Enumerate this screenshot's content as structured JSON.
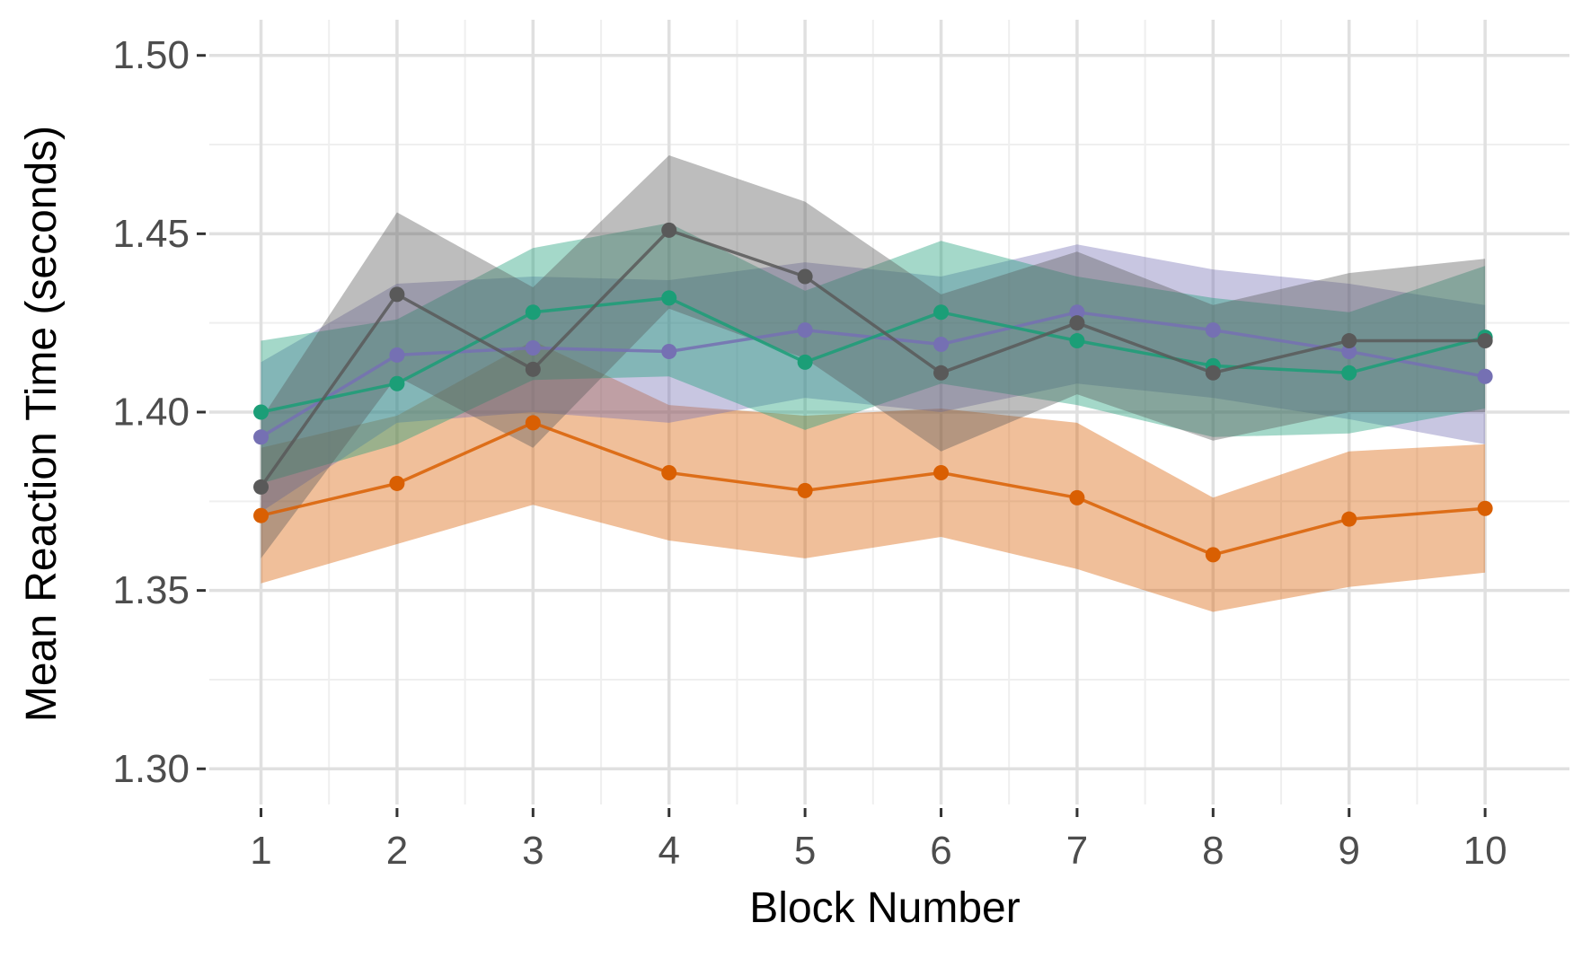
{
  "chart_data": {
    "type": "line",
    "title": "",
    "xlabel": "Block Number",
    "ylabel": "Mean Reaction Time (seconds)",
    "x": [
      1,
      2,
      3,
      4,
      5,
      6,
      7,
      8,
      9,
      10
    ],
    "xticks": [
      "1",
      "2",
      "3",
      "4",
      "5",
      "6",
      "7",
      "8",
      "9",
      "10"
    ],
    "yticks": [
      "1.30",
      "1.35",
      "1.40",
      "1.45",
      "1.50"
    ],
    "ytick_values": [
      1.3,
      1.35,
      1.4,
      1.45,
      1.5
    ],
    "xlim": [
      0.62,
      10.62
    ],
    "ylim": [
      1.29,
      1.51
    ],
    "grid": true,
    "legend": "none",
    "series": [
      {
        "color": "#d95f02",
        "values": [
          1.371,
          1.38,
          1.397,
          1.383,
          1.378,
          1.383,
          1.376,
          1.36,
          1.37,
          1.373
        ],
        "lower": [
          1.352,
          1.363,
          1.374,
          1.364,
          1.359,
          1.365,
          1.356,
          1.344,
          1.351,
          1.355
        ],
        "upper": [
          1.39,
          1.399,
          1.42,
          1.402,
          1.399,
          1.401,
          1.397,
          1.376,
          1.389,
          1.391
        ]
      },
      {
        "color": "#7570b3",
        "values": [
          1.393,
          1.416,
          1.418,
          1.417,
          1.423,
          1.419,
          1.428,
          1.423,
          1.417,
          1.41
        ],
        "lower": [
          1.372,
          1.397,
          1.4,
          1.397,
          1.404,
          1.4,
          1.408,
          1.404,
          1.398,
          1.391
        ],
        "upper": [
          1.414,
          1.436,
          1.438,
          1.437,
          1.442,
          1.438,
          1.447,
          1.44,
          1.436,
          1.43
        ]
      },
      {
        "color": "#1b9e77",
        "values": [
          1.4,
          1.408,
          1.428,
          1.432,
          1.414,
          1.428,
          1.42,
          1.413,
          1.411,
          1.421
        ],
        "lower": [
          1.38,
          1.391,
          1.409,
          1.41,
          1.395,
          1.408,
          1.402,
          1.393,
          1.394,
          1.401
        ],
        "upper": [
          1.42,
          1.426,
          1.446,
          1.453,
          1.434,
          1.448,
          1.438,
          1.432,
          1.428,
          1.441
        ]
      },
      {
        "color": "#595959",
        "values": [
          1.379,
          1.433,
          1.412,
          1.451,
          1.438,
          1.411,
          1.425,
          1.411,
          1.42,
          1.42
        ],
        "lower": [
          1.359,
          1.41,
          1.39,
          1.429,
          1.415,
          1.389,
          1.405,
          1.392,
          1.4,
          1.4
        ],
        "upper": [
          1.398,
          1.456,
          1.435,
          1.472,
          1.459,
          1.433,
          1.445,
          1.43,
          1.439,
          1.443
        ]
      }
    ]
  },
  "style": {
    "grid_major_color": "#e0e0e0",
    "grid_minor_color": "#efefef",
    "band_opacity": 0.4,
    "line_opacity": 0.85
  }
}
